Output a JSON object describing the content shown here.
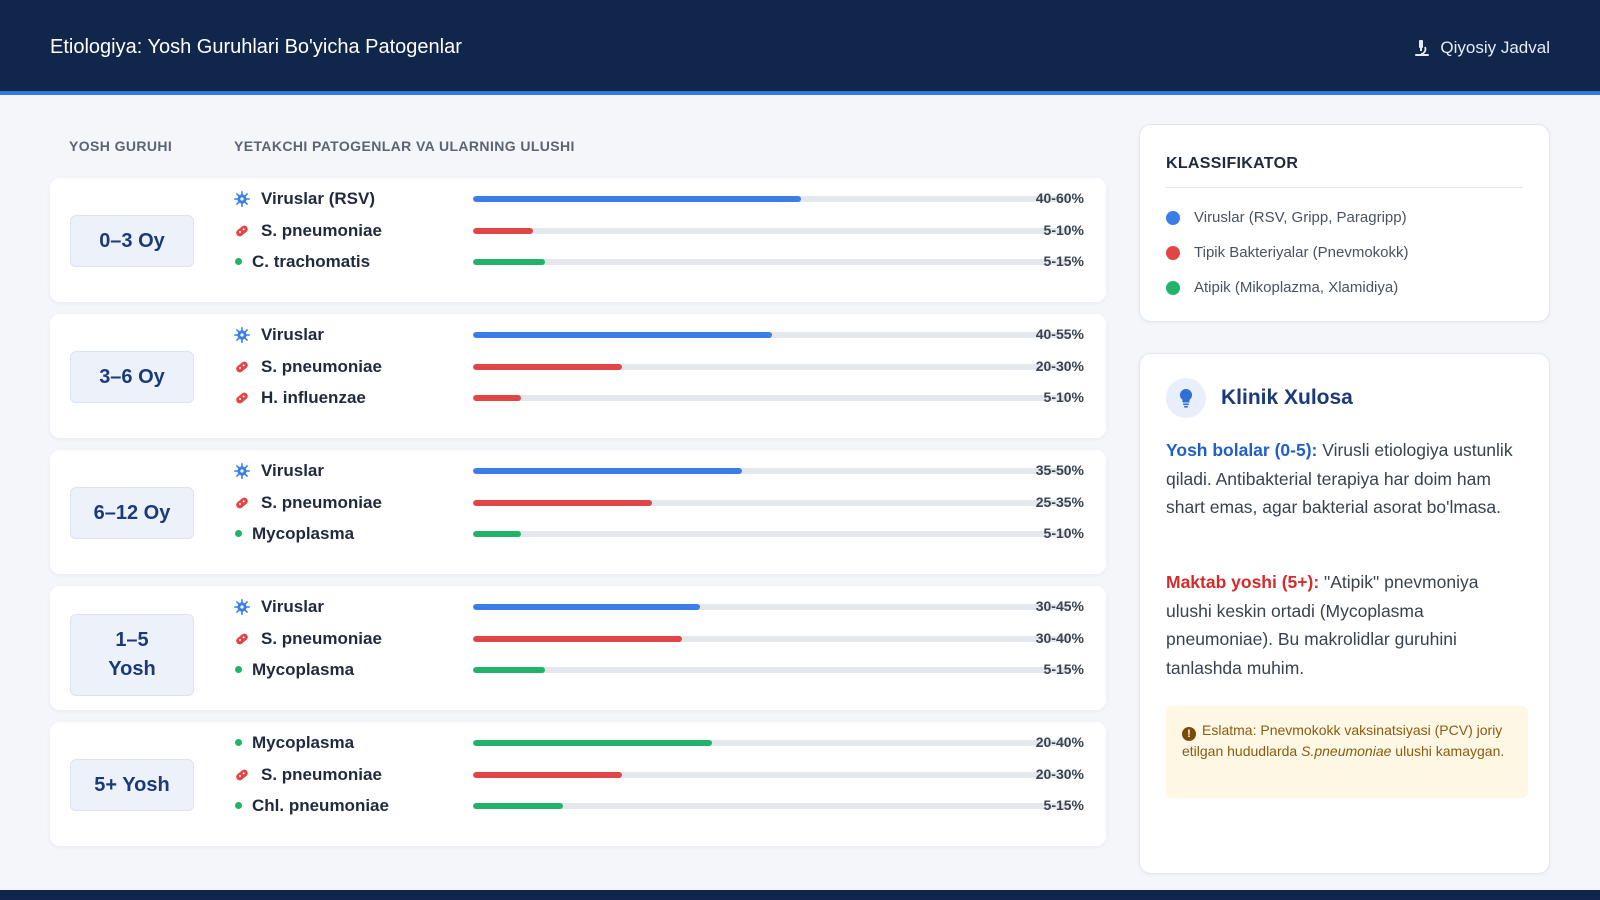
{
  "header": {
    "title": "Etiologiya: Yosh Guruhlari Bo'yicha Patogenlar",
    "link_label": "Qiyosiy Jadval",
    "link_icon": "microscope-icon"
  },
  "columns": {
    "age_group": "YOSH GURUHI",
    "pathogens": "YETAKCHI PATOGENLAR VA ULARNING ULUSHI"
  },
  "colors": {
    "viral": "#3b7ee8",
    "bacterial": "#e24545",
    "atypical": "#22b36a",
    "navy": "#10264a"
  },
  "groups": [
    {
      "age": "0–3 Oy",
      "pathogens": [
        {
          "name": "Viruslar (RSV)",
          "type": "viral",
          "icon": "virus-icon",
          "share": "40-60%",
          "fill": 0.55
        },
        {
          "name": "S. pneumoniae",
          "type": "bacterial",
          "icon": "bacteria-icon",
          "share": "5-10%",
          "fill": 0.1
        },
        {
          "name": "C. trachomatis",
          "type": "atypical",
          "icon": "dot-icon",
          "share": "5-15%",
          "fill": 0.12
        }
      ]
    },
    {
      "age": "3–6 Oy",
      "pathogens": [
        {
          "name": "Viruslar",
          "type": "viral",
          "icon": "virus-icon",
          "share": "40-55%",
          "fill": 0.5
        },
        {
          "name": "S. pneumoniae",
          "type": "bacterial",
          "icon": "bacteria-icon",
          "share": "20-30%",
          "fill": 0.25
        },
        {
          "name": "H. influenzae",
          "type": "bacterial",
          "icon": "bacteria-icon",
          "share": "5-10%",
          "fill": 0.08
        }
      ]
    },
    {
      "age": "6–12 Oy",
      "pathogens": [
        {
          "name": "Viruslar",
          "type": "viral",
          "icon": "virus-icon",
          "share": "35-50%",
          "fill": 0.45
        },
        {
          "name": "S. pneumoniae",
          "type": "bacterial",
          "icon": "bacteria-icon",
          "share": "25-35%",
          "fill": 0.3
        },
        {
          "name": "Mycoplasma",
          "type": "atypical",
          "icon": "dot-icon",
          "share": "5-10%",
          "fill": 0.08
        }
      ]
    },
    {
      "age": "1–5 Yosh",
      "pathogens": [
        {
          "name": "Viruslar",
          "type": "viral",
          "icon": "virus-icon",
          "share": "30-45%",
          "fill": 0.38
        },
        {
          "name": "S. pneumoniae",
          "type": "bacterial",
          "icon": "bacteria-icon",
          "share": "30-40%",
          "fill": 0.35
        },
        {
          "name": "Mycoplasma",
          "type": "atypical",
          "icon": "dot-icon",
          "share": "5-15%",
          "fill": 0.12
        }
      ]
    },
    {
      "age": "5+ Yosh",
      "pathogens": [
        {
          "name": "Mycoplasma",
          "type": "atypical",
          "icon": "dot-icon",
          "share": "20-40%",
          "fill": 0.4
        },
        {
          "name": "S. pneumoniae",
          "type": "bacterial",
          "icon": "bacteria-icon",
          "share": "20-30%",
          "fill": 0.25
        },
        {
          "name": "Chl. pneumoniae",
          "type": "atypical",
          "icon": "dot-icon",
          "share": "5-15%",
          "fill": 0.15
        }
      ]
    }
  ],
  "legend": {
    "title": "KLASSIFIKATOR",
    "items": [
      {
        "label": "Viruslar (RSV, Gripp, Paragripp)",
        "type": "viral"
      },
      {
        "label": "Tipik Bakteriyalar (Pnevmokokk)",
        "type": "bacterial"
      },
      {
        "label": "Atipik (Mikoplazma, Xlamidiya)",
        "type": "atypical"
      }
    ]
  },
  "summary": {
    "title": "Klinik Xulosa",
    "icon": "lightbulb-icon",
    "p1_lead": "Yosh bolalar (0-5):",
    "p1_text": " Virusli etiologiya ustunlik qiladi. Antibakterial terapiya har doim ham shart emas, agar bakterial asorat bo'lmasa.",
    "p2_lead": "Maktab yoshi (5+):",
    "p2_text": " \"Atipik\" pnevmoniya ulushi keskin ortadi (Mycoplasma pneumoniae). Bu makrolidlar guruhini tanlashda muhim.",
    "note_icon": "warning-icon",
    "note_pre": "Eslatma: Pnevmokokk vaksinatsiyasi (PCV) joriy etilgan hududlarda ",
    "note_em": "S.pneumoniae",
    "note_post": " ulushi kamaygan."
  }
}
